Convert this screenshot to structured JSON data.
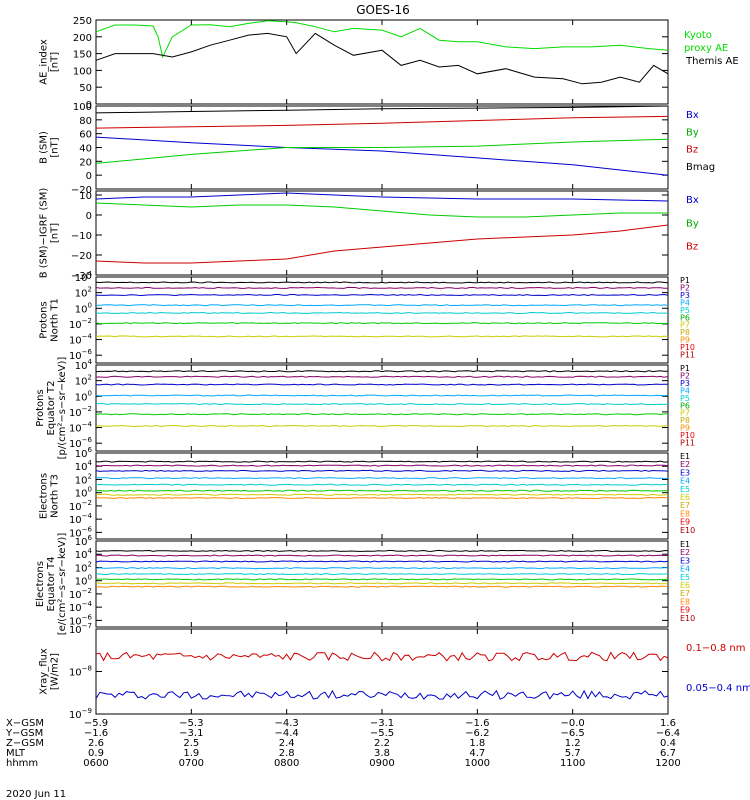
{
  "title": "GOES-16",
  "chart_data": [
    {
      "type": "line",
      "ylabel": [
        "AE_index",
        "[nT]"
      ],
      "ylim": [
        0,
        250
      ],
      "yticks": [
        "250",
        "200",
        "150",
        "100",
        "50",
        "0"
      ],
      "series": [
        {
          "name": "Kyoto proxy AE",
          "color": "#00dd00",
          "x": [
            600,
            620,
            640,
            660,
            665,
            670,
            680,
            700,
            720,
            740,
            760,
            780,
            800,
            810,
            830,
            850,
            870,
            900,
            920,
            940,
            960,
            980,
            1000,
            1030,
            1060,
            1090,
            1120,
            1150,
            1180,
            1200
          ],
          "values": [
            215,
            235,
            235,
            232,
            200,
            140,
            200,
            235,
            236,
            230,
            240,
            248,
            245,
            242,
            230,
            215,
            225,
            220,
            200,
            225,
            190,
            185,
            185,
            170,
            165,
            170,
            170,
            175,
            165,
            160
          ]
        },
        {
          "name": "Themis AE",
          "color": "#000000",
          "x": [
            600,
            620,
            640,
            660,
            680,
            700,
            720,
            740,
            760,
            780,
            800,
            810,
            830,
            850,
            870,
            900,
            920,
            940,
            960,
            980,
            1000,
            1030,
            1060,
            1090,
            1110,
            1130,
            1150,
            1170,
            1185,
            1200
          ],
          "values": [
            130,
            150,
            150,
            150,
            140,
            155,
            175,
            190,
            205,
            210,
            200,
            150,
            210,
            175,
            145,
            160,
            115,
            130,
            110,
            115,
            90,
            105,
            80,
            75,
            60,
            65,
            80,
            65,
            115,
            90
          ]
        }
      ],
      "legend": [
        {
          "text": "Kyoto",
          "color": "#00dd00"
        },
        {
          "text": "proxy AE",
          "color": "#00dd00"
        },
        {
          "text": "Themis AE",
          "color": "#000000"
        }
      ]
    },
    {
      "type": "line",
      "ylabel": [
        "B (SM)",
        "[nT]"
      ],
      "ylim": [
        -20,
        100
      ],
      "yticks": [
        "100",
        "80",
        "60",
        "40",
        "20",
        "0",
        "−20"
      ],
      "series": [
        {
          "name": "Bx",
          "color": "#0000cc",
          "x": [
            600,
            700,
            800,
            900,
            1000,
            1100,
            1200
          ],
          "values": [
            55,
            47,
            40,
            35,
            25,
            15,
            0
          ]
        },
        {
          "name": "By",
          "color": "#00cc00",
          "x": [
            600,
            700,
            800,
            900,
            1000,
            1100,
            1200
          ],
          "values": [
            17,
            30,
            40,
            40,
            42,
            48,
            52
          ]
        },
        {
          "name": "Bz",
          "color": "#cc0000",
          "x": [
            600,
            700,
            800,
            900,
            1000,
            1100,
            1200
          ],
          "values": [
            68,
            70,
            72,
            75,
            79,
            83,
            85
          ]
        },
        {
          "name": "Bmag",
          "color": "#000000",
          "x": [
            600,
            700,
            800,
            900,
            1000,
            1100,
            1200
          ],
          "values": [
            90,
            92,
            94,
            96,
            97,
            98,
            100
          ]
        }
      ],
      "legend": [
        {
          "text": "Bx",
          "color": "#0000cc"
        },
        {
          "text": "By",
          "color": "#00aa00"
        },
        {
          "text": "Bz",
          "color": "#cc0000"
        },
        {
          "text": "Bmag",
          "color": "#000000"
        }
      ]
    },
    {
      "type": "line",
      "ylabel": [
        "B (SM)−IGRF (SM)",
        "[nT]"
      ],
      "ylim": [
        -30,
        12
      ],
      "yticks": [
        "10",
        "0",
        "−10",
        "−20",
        "−30"
      ],
      "series": [
        {
          "name": "Bx",
          "color": "#0000cc",
          "x": [
            600,
            650,
            700,
            750,
            800,
            850,
            900,
            1000,
            1100,
            1200
          ],
          "values": [
            8,
            9,
            9,
            10,
            11,
            10,
            9,
            8,
            8,
            7
          ]
        },
        {
          "name": "By",
          "color": "#00cc00",
          "x": [
            600,
            650,
            700,
            750,
            800,
            850,
            900,
            950,
            1000,
            1050,
            1100,
            1150,
            1200
          ],
          "values": [
            6,
            5,
            4,
            5,
            5,
            4,
            2,
            0,
            -1,
            -1,
            0,
            1,
            1
          ]
        },
        {
          "name": "Bz",
          "color": "#cc0000",
          "x": [
            600,
            650,
            700,
            750,
            800,
            850,
            900,
            950,
            1000,
            1050,
            1100,
            1150,
            1200
          ],
          "values": [
            -23,
            -24,
            -24,
            -23,
            -22,
            -18,
            -16,
            -14,
            -12,
            -11,
            -10,
            -8,
            -5
          ]
        }
      ],
      "legend": [
        {
          "text": "Bx",
          "color": "#0000cc"
        },
        {
          "text": "By",
          "color": "#00aa00"
        },
        {
          "text": "Bz",
          "color": "#cc0000"
        }
      ]
    },
    {
      "type": "line",
      "log": true,
      "ylabel": [
        "Protons",
        "North T1"
      ],
      "ylim": [
        -7,
        4
      ],
      "yticks": [
        {
          "b": "10",
          "e": "4",
          "v": 4
        },
        {
          "b": "10",
          "e": "2",
          "v": 2
        },
        {
          "b": "10",
          "e": "0",
          "v": 0
        },
        {
          "b": "10",
          "e": "−2",
          "v": -2
        },
        {
          "b": "10",
          "e": "−4",
          "v": -4
        },
        {
          "b": "10",
          "e": "−6",
          "v": -6
        }
      ],
      "series": [
        {
          "name": "P1",
          "color": "#000000",
          "values": [
            3.3
          ]
        },
        {
          "name": "P2",
          "color": "#880066",
          "values": [
            2.6
          ]
        },
        {
          "name": "P3",
          "color": "#0000cc",
          "values": [
            1.7
          ]
        },
        {
          "name": "P4",
          "color": "#00aaff",
          "values": [
            0.4
          ]
        },
        {
          "name": "P5",
          "color": "#00cccc",
          "values": [
            -0.6
          ]
        },
        {
          "name": "P6",
          "color": "#00cc00",
          "values": [
            -1.9
          ]
        },
        {
          "name": "P7",
          "color": "#cccc00",
          "values": [
            -3.6
          ]
        }
      ],
      "legend": [
        {
          "text": "P1",
          "color": "#000000"
        },
        {
          "text": "P2",
          "color": "#880066"
        },
        {
          "text": "P3",
          "color": "#0000cc"
        },
        {
          "text": "P4",
          "color": "#00aaff"
        },
        {
          "text": "P5",
          "color": "#00cccc"
        },
        {
          "text": "P6",
          "color": "#00aa00"
        },
        {
          "text": "P7",
          "color": "#cccc00"
        },
        {
          "text": "P8",
          "color": "#ccaa00"
        },
        {
          "text": "P9",
          "color": "#ff8800"
        },
        {
          "text": "P10",
          "color": "#ee0000"
        },
        {
          "text": "P11",
          "color": "#aa0000"
        }
      ]
    },
    {
      "type": "line",
      "log": true,
      "ylabel": [
        "Protons",
        "Equator T2",
        "[p/(cm²−s−sr−keV)]"
      ],
      "ylim": [
        -7,
        4
      ],
      "yticks": [
        {
          "b": "10",
          "e": "4",
          "v": 4
        },
        {
          "b": "10",
          "e": "2",
          "v": 2
        },
        {
          "b": "10",
          "e": "0",
          "v": 0
        },
        {
          "b": "10",
          "e": "−2",
          "v": -2
        },
        {
          "b": "10",
          "e": "−4",
          "v": -4
        },
        {
          "b": "10",
          "e": "−6",
          "v": -6
        }
      ],
      "series": [
        {
          "name": "P1",
          "color": "#000000",
          "values": [
            3.2
          ]
        },
        {
          "name": "P2",
          "color": "#880066",
          "values": [
            2.5
          ]
        },
        {
          "name": "P3",
          "color": "#0000cc",
          "values": [
            1.5
          ]
        },
        {
          "name": "P4",
          "color": "#00aaff",
          "values": [
            0.1
          ]
        },
        {
          "name": "P5",
          "color": "#00cccc",
          "values": [
            -1.0
          ]
        },
        {
          "name": "P6",
          "color": "#00cc00",
          "values": [
            -2.3
          ]
        },
        {
          "name": "P7",
          "color": "#cccc00",
          "values": [
            -3.8
          ]
        }
      ],
      "legend": [
        {
          "text": "P1",
          "color": "#000000"
        },
        {
          "text": "P2",
          "color": "#880066"
        },
        {
          "text": "P3",
          "color": "#0000cc"
        },
        {
          "text": "P4",
          "color": "#00aaff"
        },
        {
          "text": "P5",
          "color": "#00cccc"
        },
        {
          "text": "P6",
          "color": "#00aa00"
        },
        {
          "text": "P7",
          "color": "#cccc00"
        },
        {
          "text": "P8",
          "color": "#ccaa00"
        },
        {
          "text": "P9",
          "color": "#ff8800"
        },
        {
          "text": "P10",
          "color": "#ee0000"
        },
        {
          "text": "P11",
          "color": "#aa0000"
        }
      ]
    },
    {
      "type": "line",
      "log": true,
      "ylabel": [
        "Electrons",
        "North T3"
      ],
      "ylim": [
        -7,
        6
      ],
      "yticks": [
        {
          "b": "10",
          "e": "6",
          "v": 6
        },
        {
          "b": "10",
          "e": "4",
          "v": 4
        },
        {
          "b": "10",
          "e": "2",
          "v": 2
        },
        {
          "b": "10",
          "e": "0",
          "v": 0
        },
        {
          "b": "10",
          "e": "−2",
          "v": -2
        },
        {
          "b": "10",
          "e": "−4",
          "v": -4
        },
        {
          "b": "10",
          "e": "−6",
          "v": -6
        }
      ],
      "series": [
        {
          "name": "E1",
          "color": "#000000",
          "values": [
            4.7
          ]
        },
        {
          "name": "E2",
          "color": "#880066",
          "values": [
            4.1
          ]
        },
        {
          "name": "E3",
          "color": "#0000cc",
          "values": [
            3.3
          ]
        },
        {
          "name": "E4",
          "color": "#00aaff",
          "values": [
            2.2
          ]
        },
        {
          "name": "E5",
          "color": "#00cccc",
          "values": [
            1.2
          ]
        },
        {
          "name": "E6",
          "color": "#00cc00",
          "values": [
            0.3
          ]
        },
        {
          "name": "E7",
          "color": "#cccc00",
          "values": [
            -0.3
          ]
        },
        {
          "name": "E8",
          "color": "#ff8800",
          "values": [
            -0.8
          ]
        }
      ],
      "legend": [
        {
          "text": "E1",
          "color": "#000000"
        },
        {
          "text": "E2",
          "color": "#880066"
        },
        {
          "text": "E3",
          "color": "#0000cc"
        },
        {
          "text": "E4",
          "color": "#00aaff"
        },
        {
          "text": "E5",
          "color": "#00cccc"
        },
        {
          "text": "E6",
          "color": "#cccc00"
        },
        {
          "text": "E7",
          "color": "#ccaa00"
        },
        {
          "text": "E8",
          "color": "#ff8800"
        },
        {
          "text": "E9",
          "color": "#ee0000"
        },
        {
          "text": "E10",
          "color": "#aa0000"
        }
      ]
    },
    {
      "type": "line",
      "log": true,
      "ylabel": [
        "Electrons",
        "Equator T4",
        "[e/(cm²−s−sr−keV)]"
      ],
      "ylim": [
        -7,
        6
      ],
      "yticks": [
        {
          "b": "10",
          "e": "6",
          "v": 6
        },
        {
          "b": "10",
          "e": "4",
          "v": 4
        },
        {
          "b": "10",
          "e": "2",
          "v": 2
        },
        {
          "b": "10",
          "e": "0",
          "v": 0
        },
        {
          "b": "10",
          "e": "−2",
          "v": -2
        },
        {
          "b": "10",
          "e": "−4",
          "v": -4
        },
        {
          "b": "10",
          "e": "−6",
          "v": -6
        }
      ],
      "series": [
        {
          "name": "E1",
          "color": "#000000",
          "values": [
            4.5
          ]
        },
        {
          "name": "E2",
          "color": "#880066",
          "values": [
            3.8
          ]
        },
        {
          "name": "E3",
          "color": "#0000cc",
          "values": [
            2.9
          ]
        },
        {
          "name": "E4",
          "color": "#00aaff",
          "values": [
            1.9
          ]
        },
        {
          "name": "E5",
          "color": "#00cccc",
          "values": [
            1.0
          ]
        },
        {
          "name": "E6",
          "color": "#00cc00",
          "values": [
            0.2
          ]
        },
        {
          "name": "E7",
          "color": "#cccc00",
          "values": [
            -0.4
          ]
        },
        {
          "name": "E8",
          "color": "#ff8800",
          "values": [
            -0.9
          ]
        }
      ],
      "legend": [
        {
          "text": "E1",
          "color": "#000000"
        },
        {
          "text": "E2",
          "color": "#880066"
        },
        {
          "text": "E3",
          "color": "#0000cc"
        },
        {
          "text": "E4",
          "color": "#00aaff"
        },
        {
          "text": "E5",
          "color": "#00cccc"
        },
        {
          "text": "E6",
          "color": "#cccc00"
        },
        {
          "text": "E7",
          "color": "#ccaa00"
        },
        {
          "text": "E8",
          "color": "#ff8800"
        },
        {
          "text": "E9",
          "color": "#ee0000"
        },
        {
          "text": "E10",
          "color": "#aa0000"
        }
      ]
    },
    {
      "type": "line",
      "log": true,
      "ylabel": [
        "Xray_flux",
        "[W/m2]"
      ],
      "ylim": [
        -9,
        -7
      ],
      "yticks": [
        {
          "b": "10",
          "e": "−7",
          "v": -7
        },
        {
          "b": "10",
          "e": "−8",
          "v": -8
        },
        {
          "b": "10",
          "e": "−9",
          "v": -9
        }
      ],
      "series": [
        {
          "name": "0.1−0.8 nm",
          "color": "#cc0000",
          "values": [
            -7.65
          ]
        },
        {
          "name": "0.05−0.4 nm",
          "color": "#0000cc",
          "values": [
            -8.55
          ]
        }
      ],
      "legend": [
        {
          "text": "0.1−0.8 nm",
          "color": "#cc0000"
        },
        {
          "text": "0.05−0.4 nm",
          "color": "#0000cc"
        }
      ]
    }
  ],
  "x_axis": {
    "ticks": [
      "0600",
      "0700",
      "0800",
      "0900",
      "1000",
      "1100",
      "1200"
    ],
    "rows": [
      {
        "label": "X−GSM",
        "values": [
          "−5.9",
          "−5.3",
          "−4.3",
          "−3.1",
          "−1.6",
          "−0.0",
          "1.6"
        ]
      },
      {
        "label": "Y−GSM",
        "values": [
          "−1.6",
          "−3.1",
          "−4.4",
          "−5.5",
          "−6.2",
          "−6.5",
          "−6.4"
        ]
      },
      {
        "label": "Z−GSM",
        "values": [
          "2.6",
          "2.5",
          "2.4",
          "2.2",
          "1.8",
          "1.2",
          "0.4"
        ]
      },
      {
        "label": "MLT",
        "values": [
          "0.9",
          "1.9",
          "2.8",
          "3.8",
          "4.7",
          "5.7",
          "6.7"
        ]
      },
      {
        "label": "hhmm",
        "values": [
          "0600",
          "0700",
          "0800",
          "0900",
          "1000",
          "1100",
          "1200"
        ]
      }
    ],
    "date": "2020 Jun 11"
  }
}
